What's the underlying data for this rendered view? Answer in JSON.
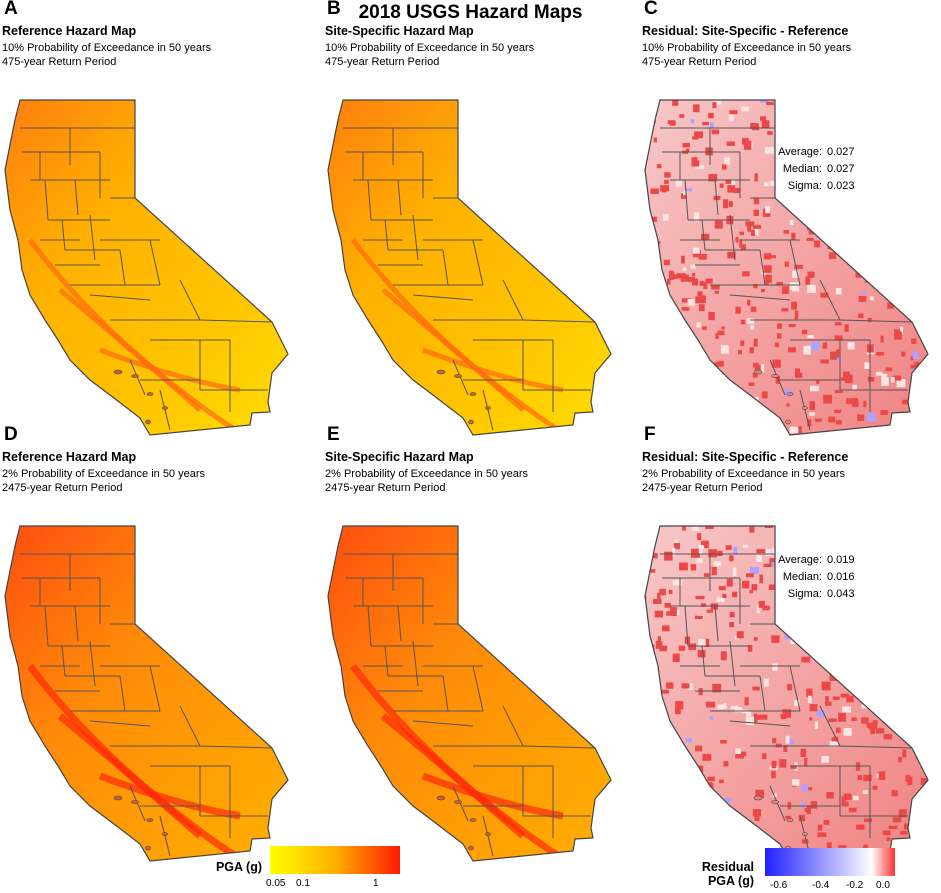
{
  "title": "2018 USGS Hazard Maps",
  "panels": [
    {
      "letter": "A",
      "title": "Reference Hazard Map",
      "line1": "10% Probability of Exceedance in 50 years",
      "line2": "475-year Return Period",
      "kind": "pga475"
    },
    {
      "letter": "B",
      "title": "Site-Specific Hazard Map",
      "line1": "10% Probability of Exceedance in 50 years",
      "line2": "475-year Return Period",
      "kind": "pga475"
    },
    {
      "letter": "C",
      "title": "Residual: Site-Specific - Reference",
      "line1": "10% Probability of Exceedance in 50 years",
      "line2": "475-year Return Period",
      "kind": "resid",
      "stats": [
        {
          "label": "Average:",
          "value": "0.027"
        },
        {
          "label": "Median:",
          "value": "0.027"
        },
        {
          "label": "Sigma:",
          "value": "0.023"
        }
      ]
    },
    {
      "letter": "D",
      "title": "Reference Hazard Map",
      "line1": "2% Probability of Exceedance in 50 years",
      "line2": "2475-year Return Period",
      "kind": "pga2475"
    },
    {
      "letter": "E",
      "title": "Site-Specific Hazard Map",
      "line1": "2% Probability of Exceedance in 50 years",
      "line2": "2475-year Return Period",
      "kind": "pga2475"
    },
    {
      "letter": "F",
      "title": "Residual: Site-Specific - Reference",
      "line1": "2% Probability of Exceedance in 50 years",
      "line2": "2475-year Return Period",
      "kind": "resid",
      "stats": [
        {
          "label": "Average:",
          "value": "0.019"
        },
        {
          "label": "Median:",
          "value": "0.016"
        },
        {
          "label": "Sigma:",
          "value": "0.043"
        }
      ]
    }
  ],
  "legend_pga": {
    "title": "PGA (g)",
    "ticks": [
      "0.05",
      "0.1",
      "1"
    ],
    "colors": [
      "#ffff00",
      "#ffb000",
      "#ff2000"
    ]
  },
  "legend_resid": {
    "title_line1": "Residual",
    "title_line2": "PGA (g)",
    "ticks": [
      "-0.6",
      "-0.4",
      "-0.2",
      "0.0"
    ],
    "colors": [
      "#2020ff",
      "#ffffff",
      "#ff3030"
    ]
  },
  "colors": {
    "county_lines": "#555555",
    "ocean_islands": "#c8623a",
    "fault_band": "#ff5a10"
  }
}
